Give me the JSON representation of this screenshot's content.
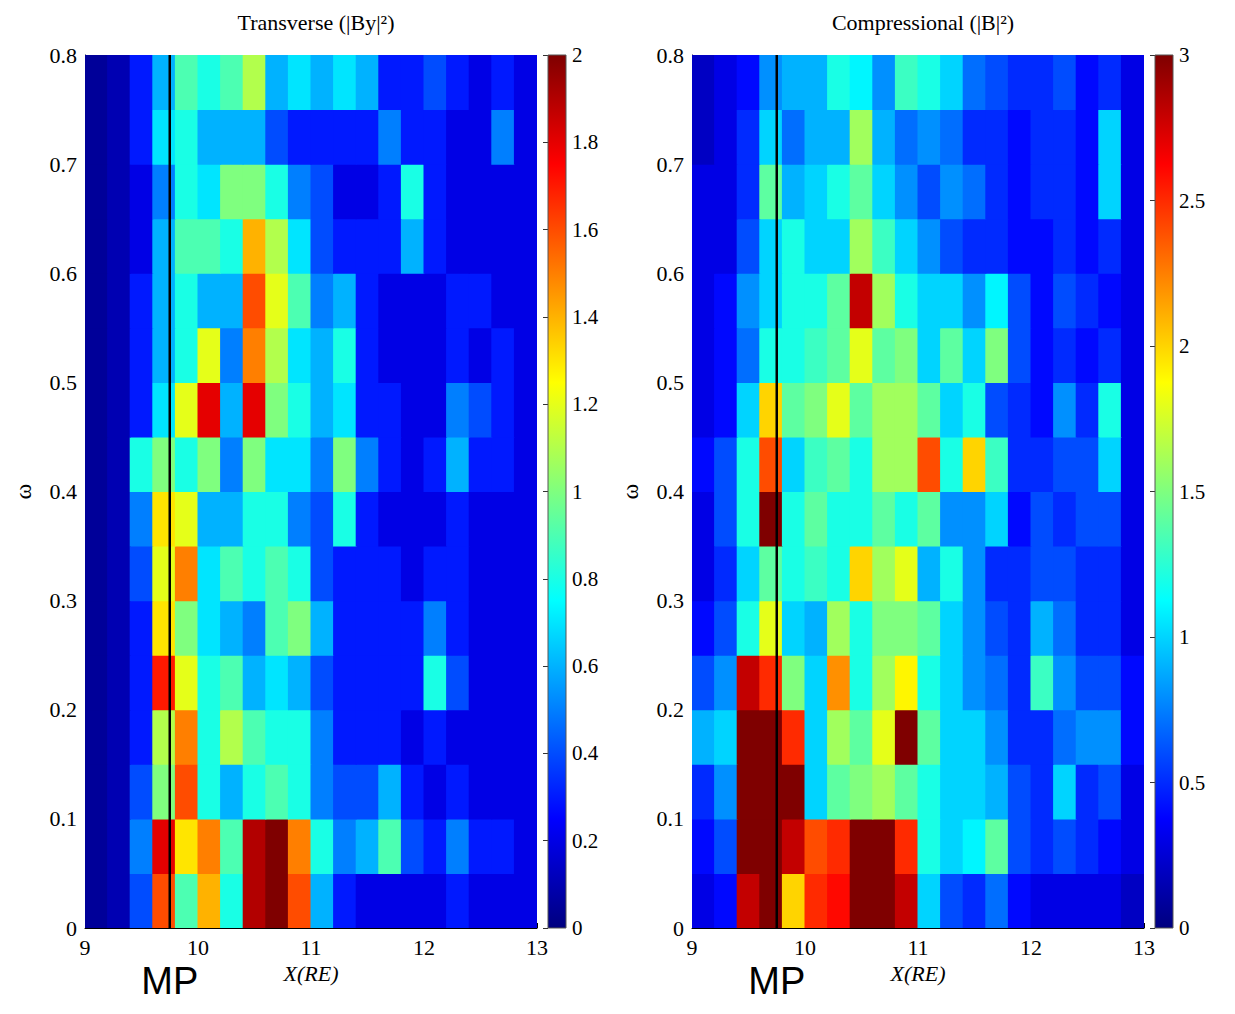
{
  "chart_data": [
    {
      "type": "heatmap",
      "title": "Transverse (|By|²)",
      "x_label": "X(RE)",
      "y_label": "ω",
      "xlim": [
        9,
        13
      ],
      "xticks": [
        9,
        10,
        11,
        12,
        13
      ],
      "ylim": [
        0,
        0.8
      ],
      "yticks": [
        0,
        0.1,
        0.2,
        0.3,
        0.4,
        0.5,
        0.6,
        0.7,
        0.8
      ],
      "x_bins": [
        9,
        9.2,
        9.4,
        9.6,
        9.8,
        10,
        10.2,
        10.4,
        10.6,
        10.8,
        11,
        11.2,
        11.4,
        11.6,
        11.8,
        12,
        12.2,
        12.4,
        12.6,
        12.8,
        13
      ],
      "y_bins": [
        0,
        0.05,
        0.1,
        0.15,
        0.2,
        0.25,
        0.3,
        0.35,
        0.4,
        0.45,
        0.5,
        0.55,
        0.6,
        0.65,
        0.7,
        0.75,
        0.8
      ],
      "z": [
        [
          0.05,
          0.1,
          0.4,
          1.6,
          0.9,
          1.4,
          0.8,
          1.9,
          2.0,
          1.6,
          0.6,
          0.3,
          0.2,
          0.2,
          0.2,
          0.2,
          0.3,
          0.2,
          0.2,
          0.2
        ],
        [
          0.05,
          0.1,
          0.5,
          1.8,
          1.3,
          1.5,
          0.9,
          1.9,
          2.0,
          1.5,
          0.8,
          0.5,
          0.6,
          0.9,
          0.4,
          0.3,
          0.5,
          0.3,
          0.3,
          0.2
        ],
        [
          0.05,
          0.1,
          0.4,
          1.0,
          1.6,
          0.8,
          0.6,
          0.8,
          0.9,
          0.8,
          0.5,
          0.4,
          0.4,
          0.6,
          0.3,
          0.2,
          0.3,
          0.2,
          0.2,
          0.2
        ],
        [
          0.05,
          0.1,
          0.3,
          1.1,
          1.5,
          0.8,
          1.1,
          0.9,
          0.8,
          0.8,
          0.5,
          0.3,
          0.3,
          0.3,
          0.2,
          0.3,
          0.2,
          0.2,
          0.2,
          0.2
        ],
        [
          0.05,
          0.1,
          0.3,
          1.7,
          1.2,
          0.8,
          0.9,
          0.6,
          0.7,
          0.6,
          0.4,
          0.3,
          0.3,
          0.3,
          0.3,
          0.8,
          0.4,
          0.2,
          0.2,
          0.2
        ],
        [
          0.05,
          0.1,
          0.3,
          1.3,
          1.0,
          0.7,
          0.6,
          0.5,
          0.9,
          1.0,
          0.6,
          0.3,
          0.3,
          0.3,
          0.3,
          0.5,
          0.3,
          0.2,
          0.2,
          0.2
        ],
        [
          0.05,
          0.1,
          0.4,
          1.2,
          1.5,
          0.7,
          0.9,
          0.8,
          0.9,
          0.8,
          0.4,
          0.3,
          0.3,
          0.3,
          0.2,
          0.3,
          0.3,
          0.2,
          0.2,
          0.2
        ],
        [
          0.05,
          0.1,
          0.5,
          1.3,
          1.2,
          0.6,
          0.6,
          0.8,
          0.8,
          0.5,
          0.4,
          0.8,
          0.3,
          0.2,
          0.2,
          0.2,
          0.3,
          0.2,
          0.2,
          0.2
        ],
        [
          0.05,
          0.1,
          0.8,
          1.0,
          0.8,
          1.0,
          0.5,
          1.0,
          0.7,
          0.7,
          0.5,
          1.0,
          0.5,
          0.3,
          0.2,
          0.3,
          0.6,
          0.3,
          0.3,
          0.2
        ],
        [
          0.05,
          0.1,
          0.3,
          0.7,
          1.2,
          1.8,
          0.6,
          1.8,
          1.0,
          0.8,
          0.6,
          0.7,
          0.3,
          0.3,
          0.2,
          0.2,
          0.5,
          0.4,
          0.3,
          0.2
        ],
        [
          0.05,
          0.1,
          0.3,
          0.6,
          0.8,
          1.2,
          0.5,
          1.5,
          1.1,
          0.7,
          0.6,
          0.8,
          0.3,
          0.2,
          0.2,
          0.2,
          0.3,
          0.2,
          0.3,
          0.2
        ],
        [
          0.05,
          0.1,
          0.3,
          0.6,
          0.8,
          0.6,
          0.6,
          1.6,
          1.2,
          0.9,
          0.5,
          0.6,
          0.3,
          0.2,
          0.2,
          0.2,
          0.3,
          0.3,
          0.2,
          0.2
        ],
        [
          0.05,
          0.1,
          0.2,
          0.6,
          0.9,
          0.9,
          0.8,
          1.4,
          1.1,
          0.7,
          0.4,
          0.3,
          0.3,
          0.3,
          0.6,
          0.3,
          0.2,
          0.2,
          0.2,
          0.2
        ],
        [
          0.05,
          0.1,
          0.2,
          0.5,
          0.8,
          0.7,
          1.0,
          1.0,
          0.8,
          0.5,
          0.4,
          0.2,
          0.2,
          0.3,
          0.8,
          0.3,
          0.2,
          0.2,
          0.2,
          0.2
        ],
        [
          0.05,
          0.1,
          0.3,
          0.7,
          0.8,
          0.6,
          0.6,
          0.6,
          0.4,
          0.3,
          0.3,
          0.3,
          0.3,
          0.5,
          0.3,
          0.3,
          0.2,
          0.2,
          0.5,
          0.2
        ],
        [
          0.05,
          0.1,
          0.3,
          0.6,
          0.9,
          0.8,
          0.9,
          1.1,
          0.6,
          0.7,
          0.6,
          0.7,
          0.6,
          0.3,
          0.3,
          0.4,
          0.3,
          0.2,
          0.3,
          0.2
        ]
      ],
      "colorbar_range": [
        0,
        2
      ],
      "colorbar_ticks": [
        0,
        0.2,
        0.4,
        0.6,
        0.8,
        1,
        1.2,
        1.4,
        1.6,
        1.8,
        2
      ],
      "annotations": [
        {
          "x": 9.75,
          "label": "MP"
        }
      ]
    },
    {
      "type": "heatmap",
      "title": "Compressional (|B|²)",
      "x_label": "X(RE)",
      "y_label": "ω",
      "xlim": [
        9,
        13
      ],
      "xticks": [
        9,
        10,
        11,
        12,
        13
      ],
      "ylim": [
        0,
        0.8
      ],
      "yticks": [
        0,
        0.1,
        0.2,
        0.3,
        0.4,
        0.5,
        0.6,
        0.7,
        0.8
      ],
      "x_bins": [
        9,
        9.2,
        9.4,
        9.6,
        9.8,
        10,
        10.2,
        10.4,
        10.6,
        10.8,
        11,
        11.2,
        11.4,
        11.6,
        11.8,
        12,
        12.2,
        12.4,
        12.6,
        12.8,
        13
      ],
      "y_bins": [
        0,
        0.05,
        0.1,
        0.15,
        0.2,
        0.25,
        0.3,
        0.35,
        0.4,
        0.45,
        0.5,
        0.55,
        0.6,
        0.65,
        0.7,
        0.75,
        0.8
      ],
      "z": [
        [
          0.3,
          0.4,
          2.8,
          3.0,
          2.0,
          2.5,
          2.6,
          3.0,
          3.0,
          2.8,
          1.0,
          0.6,
          0.5,
          0.7,
          0.4,
          0.3,
          0.3,
          0.3,
          0.3,
          0.2
        ],
        [
          0.4,
          0.6,
          3.0,
          3.0,
          2.8,
          2.4,
          2.5,
          3.0,
          3.0,
          2.5,
          1.2,
          1.0,
          1.1,
          1.4,
          0.6,
          0.5,
          0.6,
          0.5,
          0.4,
          0.3
        ],
        [
          0.5,
          0.8,
          3.0,
          3.0,
          3.0,
          1.0,
          1.4,
          1.5,
          1.6,
          1.4,
          1.2,
          1.0,
          1.0,
          0.9,
          0.6,
          0.5,
          1.0,
          0.5,
          0.6,
          0.3
        ],
        [
          0.9,
          1.0,
          3.0,
          3.0,
          2.5,
          1.0,
          1.6,
          1.4,
          1.8,
          3.0,
          1.4,
          1.0,
          1.0,
          0.8,
          0.5,
          0.5,
          0.7,
          0.8,
          0.8,
          0.4
        ],
        [
          0.6,
          0.8,
          2.8,
          2.5,
          1.5,
          1.0,
          2.2,
          1.2,
          1.6,
          1.9,
          1.2,
          1.0,
          0.8,
          0.7,
          0.5,
          1.3,
          0.8,
          0.6,
          0.6,
          0.4
        ],
        [
          0.4,
          0.6,
          1.2,
          1.8,
          1.0,
          0.9,
          1.6,
          1.2,
          1.5,
          1.5,
          1.4,
          1.0,
          0.8,
          0.6,
          0.5,
          0.9,
          0.7,
          0.5,
          0.5,
          0.3
        ],
        [
          0.3,
          0.5,
          1.0,
          1.4,
          1.2,
          1.3,
          1.2,
          2.0,
          1.6,
          1.8,
          0.9,
          1.2,
          0.8,
          0.5,
          0.5,
          0.6,
          0.6,
          0.5,
          0.5,
          0.3
        ],
        [
          0.3,
          0.6,
          1.2,
          3.0,
          1.2,
          1.4,
          1.2,
          1.2,
          1.4,
          1.2,
          1.4,
          0.8,
          0.8,
          1.0,
          0.4,
          0.6,
          0.5,
          0.6,
          0.6,
          0.3
        ],
        [
          0.4,
          0.6,
          1.2,
          2.4,
          1.0,
          1.3,
          1.4,
          1.2,
          1.6,
          1.6,
          2.4,
          1.2,
          2.0,
          1.3,
          0.5,
          0.5,
          0.6,
          0.6,
          1.0,
          0.3
        ],
        [
          0.3,
          0.4,
          1.0,
          2.0,
          1.4,
          1.5,
          1.8,
          1.4,
          1.6,
          1.6,
          1.4,
          1.0,
          1.2,
          0.6,
          0.5,
          0.4,
          0.8,
          0.5,
          1.2,
          0.3
        ],
        [
          0.3,
          0.4,
          0.7,
          1.2,
          1.2,
          1.3,
          1.4,
          1.8,
          1.4,
          1.5,
          1.0,
          1.4,
          1.0,
          1.5,
          0.6,
          0.4,
          0.5,
          0.4,
          0.5,
          0.3
        ],
        [
          0.3,
          0.4,
          0.8,
          1.0,
          1.2,
          1.2,
          1.4,
          2.8,
          1.6,
          1.2,
          1.0,
          1.0,
          0.8,
          1.1,
          0.6,
          0.4,
          0.6,
          0.5,
          0.4,
          0.3
        ],
        [
          0.3,
          0.3,
          0.6,
          1.0,
          1.2,
          1.0,
          1.0,
          1.6,
          1.3,
          1.0,
          0.8,
          0.6,
          0.5,
          0.5,
          0.4,
          0.4,
          0.5,
          0.4,
          0.5,
          0.3
        ],
        [
          0.3,
          0.3,
          0.5,
          1.4,
          0.9,
          1.0,
          1.2,
          1.4,
          1.0,
          0.8,
          0.6,
          0.8,
          0.7,
          0.5,
          0.4,
          0.5,
          0.5,
          0.4,
          1.0,
          0.3
        ],
        [
          0.2,
          0.3,
          0.5,
          1.0,
          0.7,
          0.9,
          0.9,
          1.6,
          0.9,
          0.7,
          0.8,
          0.7,
          0.5,
          0.5,
          0.4,
          0.5,
          0.5,
          0.4,
          1.0,
          0.3
        ],
        [
          0.2,
          0.3,
          0.4,
          0.8,
          0.9,
          0.9,
          1.2,
          1.1,
          0.8,
          1.3,
          1.2,
          1.0,
          0.7,
          0.6,
          0.5,
          0.5,
          0.6,
          0.4,
          0.5,
          0.3
        ]
      ],
      "colorbar_range": [
        0,
        3
      ],
      "colorbar_ticks": [
        0,
        0.5,
        1,
        1.5,
        2,
        2.5,
        3
      ],
      "annotations": [
        {
          "x": 9.75,
          "label": "MP"
        }
      ]
    }
  ]
}
